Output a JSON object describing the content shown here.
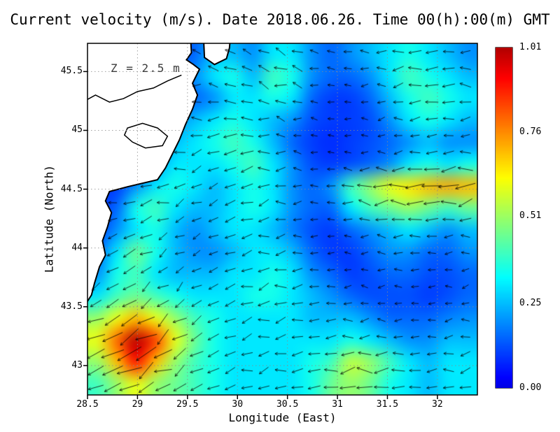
{
  "chart_data": {
    "type": "heatmap",
    "variant": "velocity-field-with-quiver-arrows",
    "title": "Current velocity (m/s). Date 2018.06.26. Time 00(h):00(m) GMT",
    "depth_annotation": "Z = 2.5 m",
    "xlabel": "Longitude (East)",
    "ylabel": "Latitude (North)",
    "xlim": [
      28.5,
      32.4
    ],
    "ylim": [
      42.75,
      45.74
    ],
    "grid": true,
    "colormap": "jet",
    "vmin": 0.0,
    "vmax": 1.01,
    "xticks": [
      {
        "v": 28.5,
        "label": "28.5"
      },
      {
        "v": 29,
        "label": "29"
      },
      {
        "v": 29.5,
        "label": "29.5"
      },
      {
        "v": 30,
        "label": "30"
      },
      {
        "v": 30.5,
        "label": "30.5"
      },
      {
        "v": 31,
        "label": "31"
      },
      {
        "v": 31.5,
        "label": "31.5"
      },
      {
        "v": 32,
        "label": "32"
      }
    ],
    "yticks": [
      {
        "v": 43,
        "label": "43"
      },
      {
        "v": 43.5,
        "label": "43.5"
      },
      {
        "v": 44,
        "label": "44"
      },
      {
        "v": 44.5,
        "label": "44.5"
      },
      {
        "v": 45,
        "label": "45"
      },
      {
        "v": 45.5,
        "label": "45.5"
      }
    ],
    "colorbar_ticks": [
      {
        "v": 0.0,
        "label": "0.00"
      },
      {
        "v": 0.25,
        "label": "0.25"
      },
      {
        "v": 0.51,
        "label": "0.51"
      },
      {
        "v": 0.76,
        "label": "0.76"
      },
      {
        "v": 1.01,
        "label": "1.01"
      }
    ],
    "colors": {
      "background": "#ffffff",
      "land": "#ffffff",
      "coastline": "#000000",
      "arrows": "#000000",
      "gridline": "#8a8a8a",
      "frame": "#000000"
    },
    "speed_grid": {
      "cols": 20,
      "rows": 16,
      "values": [
        [
          0.1,
          0.1,
          0.1,
          0.1,
          0.12,
          0.15,
          0.25,
          0.25,
          0.2,
          0.3,
          0.3,
          0.2,
          0.15,
          0.2,
          0.25,
          0.3,
          0.35,
          0.3,
          0.25,
          0.2
        ],
        [
          0.1,
          0.1,
          0.1,
          0.1,
          0.15,
          0.2,
          0.3,
          0.35,
          0.25,
          0.4,
          0.35,
          0.2,
          0.15,
          0.15,
          0.2,
          0.3,
          0.4,
          0.35,
          0.3,
          0.25
        ],
        [
          0.1,
          0.1,
          0.1,
          0.12,
          0.15,
          0.15,
          0.2,
          0.3,
          0.3,
          0.35,
          0.3,
          0.15,
          0.1,
          0.1,
          0.15,
          0.25,
          0.35,
          0.4,
          0.35,
          0.3
        ],
        [
          0.1,
          0.1,
          0.1,
          0.12,
          0.2,
          0.25,
          0.3,
          0.35,
          0.3,
          0.25,
          0.2,
          0.12,
          0.1,
          0.1,
          0.12,
          0.2,
          0.3,
          0.35,
          0.3,
          0.25
        ],
        [
          0.1,
          0.1,
          0.1,
          0.15,
          0.25,
          0.3,
          0.35,
          0.4,
          0.35,
          0.25,
          0.15,
          0.1,
          0.08,
          0.1,
          0.12,
          0.15,
          0.2,
          0.25,
          0.2,
          0.2
        ],
        [
          0.1,
          0.1,
          0.12,
          0.2,
          0.3,
          0.3,
          0.3,
          0.35,
          0.4,
          0.3,
          0.2,
          0.12,
          0.1,
          0.12,
          0.15,
          0.2,
          0.3,
          0.35,
          0.3,
          0.35
        ],
        [
          0.1,
          0.1,
          0.2,
          0.3,
          0.35,
          0.3,
          0.25,
          0.3,
          0.35,
          0.3,
          0.2,
          0.15,
          0.2,
          0.4,
          0.5,
          0.6,
          0.65,
          0.7,
          0.72,
          0.7
        ],
        [
          0.1,
          0.15,
          0.35,
          0.4,
          0.3,
          0.25,
          0.25,
          0.3,
          0.35,
          0.3,
          0.2,
          0.15,
          0.15,
          0.3,
          0.4,
          0.45,
          0.5,
          0.45,
          0.4,
          0.45
        ],
        [
          0.1,
          0.2,
          0.3,
          0.35,
          0.25,
          0.2,
          0.25,
          0.3,
          0.3,
          0.25,
          0.18,
          0.12,
          0.1,
          0.15,
          0.2,
          0.25,
          0.3,
          0.25,
          0.2,
          0.25
        ],
        [
          0.15,
          0.3,
          0.45,
          0.35,
          0.25,
          0.2,
          0.2,
          0.25,
          0.3,
          0.3,
          0.25,
          0.15,
          0.1,
          0.1,
          0.15,
          0.2,
          0.2,
          0.15,
          0.15,
          0.2
        ],
        [
          0.2,
          0.35,
          0.4,
          0.3,
          0.25,
          0.25,
          0.25,
          0.3,
          0.3,
          0.35,
          0.3,
          0.2,
          0.15,
          0.1,
          0.12,
          0.15,
          0.15,
          0.12,
          0.12,
          0.15
        ],
        [
          0.3,
          0.4,
          0.45,
          0.4,
          0.35,
          0.3,
          0.3,
          0.3,
          0.35,
          0.35,
          0.3,
          0.25,
          0.2,
          0.15,
          0.12,
          0.12,
          0.12,
          0.1,
          0.12,
          0.15
        ],
        [
          0.5,
          0.6,
          0.7,
          0.6,
          0.5,
          0.4,
          0.35,
          0.3,
          0.3,
          0.3,
          0.3,
          0.25,
          0.25,
          0.25,
          0.2,
          0.15,
          0.15,
          0.15,
          0.18,
          0.2
        ],
        [
          0.6,
          0.8,
          1.0,
          0.85,
          0.6,
          0.45,
          0.35,
          0.3,
          0.3,
          0.3,
          0.3,
          0.3,
          0.3,
          0.35,
          0.3,
          0.25,
          0.2,
          0.2,
          0.25,
          0.25
        ],
        [
          0.5,
          0.7,
          0.9,
          0.7,
          0.5,
          0.4,
          0.35,
          0.3,
          0.3,
          0.3,
          0.3,
          0.35,
          0.4,
          0.55,
          0.5,
          0.4,
          0.3,
          0.25,
          0.3,
          0.3
        ],
        [
          0.4,
          0.5,
          0.6,
          0.5,
          0.45,
          0.4,
          0.35,
          0.3,
          0.3,
          0.3,
          0.3,
          0.35,
          0.45,
          0.5,
          0.45,
          0.35,
          0.3,
          0.25,
          0.3,
          0.3
        ]
      ]
    },
    "arrow_angles_deg": {
      "cols": 10,
      "rows": 8,
      "values": [
        [
          150,
          160,
          170,
          160,
          150,
          160,
          170,
          180,
          190,
          180
        ],
        [
          160,
          170,
          180,
          170,
          160,
          170,
          180,
          190,
          185,
          175
        ],
        [
          170,
          180,
          190,
          200,
          180,
          170,
          175,
          185,
          190,
          185
        ],
        [
          180,
          190,
          200,
          210,
          195,
          180,
          175,
          180,
          185,
          190
        ],
        [
          200,
          205,
          210,
          200,
          190,
          185,
          180,
          178,
          182,
          188
        ],
        [
          210,
          215,
          220,
          205,
          195,
          188,
          182,
          180,
          185,
          190
        ],
        [
          200,
          210,
          215,
          205,
          195,
          190,
          185,
          182,
          186,
          192
        ],
        [
          195,
          205,
          210,
          200,
          192,
          188,
          184,
          182,
          185,
          190
        ]
      ]
    },
    "land_polygon": [
      [
        29.53,
        45.8
      ],
      [
        29.54,
        45.66
      ],
      [
        29.49,
        45.6
      ],
      [
        29.56,
        45.56
      ],
      [
        29.62,
        45.52
      ],
      [
        29.55,
        45.4
      ],
      [
        29.6,
        45.3
      ],
      [
        29.55,
        45.18
      ],
      [
        29.48,
        45.05
      ],
      [
        29.42,
        44.92
      ],
      [
        29.35,
        44.8
      ],
      [
        29.28,
        44.68
      ],
      [
        29.2,
        44.58
      ],
      [
        28.9,
        44.52
      ],
      [
        28.72,
        44.48
      ],
      [
        28.68,
        44.4
      ],
      [
        28.74,
        44.3
      ],
      [
        28.7,
        44.18
      ],
      [
        28.65,
        44.06
      ],
      [
        28.68,
        43.94
      ],
      [
        28.62,
        43.84
      ],
      [
        28.57,
        43.7
      ],
      [
        28.54,
        43.6
      ],
      [
        28.48,
        43.52
      ],
      [
        28.3,
        43.5
      ],
      [
        28.3,
        45.9
      ],
      [
        29.4,
        45.9
      ]
    ],
    "islet_polygon": [
      [
        29.66,
        45.8
      ],
      [
        29.67,
        45.62
      ],
      [
        29.77,
        45.56
      ],
      [
        29.89,
        45.61
      ],
      [
        29.92,
        45.7
      ],
      [
        29.93,
        45.8
      ]
    ],
    "lake_outline": [
      [
        28.9,
        45.02
      ],
      [
        29.05,
        45.06
      ],
      [
        29.2,
        45.02
      ],
      [
        29.3,
        44.95
      ],
      [
        29.25,
        44.87
      ],
      [
        29.08,
        44.85
      ],
      [
        28.95,
        44.9
      ],
      [
        28.87,
        44.96
      ]
    ],
    "river_line": [
      [
        28.45,
        45.24
      ],
      [
        28.58,
        45.3
      ],
      [
        28.72,
        45.24
      ],
      [
        28.86,
        45.27
      ],
      [
        29.0,
        45.33
      ],
      [
        29.16,
        45.36
      ],
      [
        29.3,
        45.42
      ],
      [
        29.44,
        45.47
      ]
    ]
  }
}
